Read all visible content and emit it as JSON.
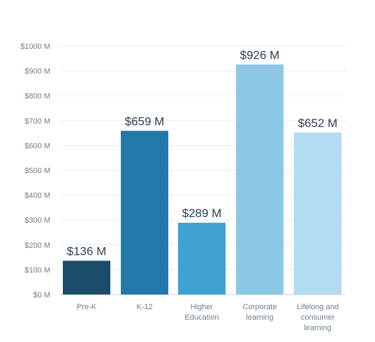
{
  "chart_data": {
    "type": "bar",
    "categories": [
      [
        "Pre-K"
      ],
      [
        "K-12"
      ],
      [
        "Higher",
        "Education"
      ],
      [
        "Corporate",
        "learning"
      ],
      [
        "Lifelong and",
        "consumer",
        "learning"
      ]
    ],
    "values": [
      136,
      659,
      289,
      926,
      652
    ],
    "value_labels": [
      "$136 M",
      "$659 M",
      "$289 M",
      "$926 M",
      "$652 M"
    ],
    "bar_colors": [
      "#1b4d6b",
      "#2279a9",
      "#3fa1d2",
      "#8cc7e6",
      "#b2dcf0"
    ],
    "yticks": [
      0,
      100,
      200,
      300,
      400,
      500,
      600,
      700,
      800,
      900,
      1000
    ],
    "ytick_labels": [
      "$0 M",
      "$100 M",
      "$200 M",
      "$300 M",
      "$400 M",
      "$500 M",
      "$600 M",
      "$700 M",
      "$800 M",
      "$900 M",
      "$1000 M"
    ],
    "ylim": [
      0,
      1000
    ],
    "title": "",
    "xlabel": "",
    "ylabel": "",
    "grid": true,
    "legend": false
  }
}
